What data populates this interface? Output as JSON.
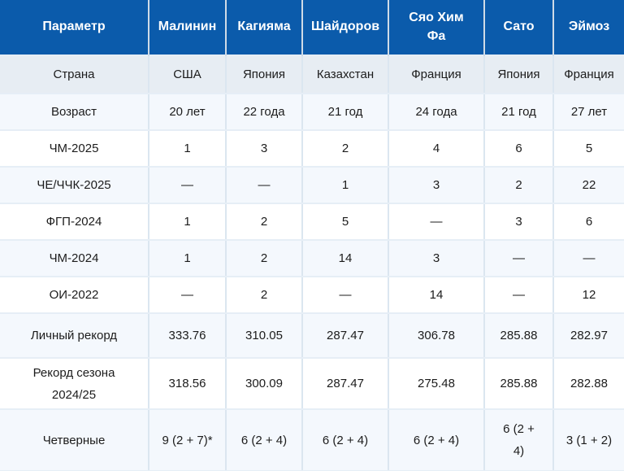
{
  "chart_data": {
    "type": "table",
    "header": {
      "param_label": "Параметр",
      "skaters": [
        "Малинин",
        "Кагияма",
        "Шайдоров",
        "Сяо Хим\nФа",
        "Сато",
        "Эймоз"
      ]
    },
    "rows": [
      {
        "label": "Страна",
        "values": [
          "США",
          "Япония",
          "Казахстан",
          "Франция",
          "Япония",
          "Франция"
        ]
      },
      {
        "label": "Возраст",
        "values": [
          "20 лет",
          "22 года",
          "21 год",
          "24 года",
          "21 год",
          "27 лет"
        ]
      },
      {
        "label": "ЧМ-2025",
        "values": [
          "1",
          "3",
          "2",
          "4",
          "6",
          "5"
        ]
      },
      {
        "label": "ЧЕ/ЧЧК-2025",
        "values": [
          "—",
          "—",
          "1",
          "3",
          "2",
          "22"
        ]
      },
      {
        "label": "ФГП-2024",
        "values": [
          "1",
          "2",
          "5",
          "—",
          "3",
          "6"
        ]
      },
      {
        "label": "ЧМ-2024",
        "values": [
          "1",
          "2",
          "14",
          "3",
          "—",
          "—"
        ]
      },
      {
        "label": "ОИ-2022",
        "values": [
          "—",
          "2",
          "—",
          "14",
          "—",
          "12"
        ]
      },
      {
        "label": "Личный рекорд",
        "values": [
          "333.76",
          "310.05",
          "287.47",
          "306.78",
          "285.88",
          "282.97"
        ]
      },
      {
        "label": "Рекорд сезона\n2024/25",
        "values": [
          "318.56",
          "300.09",
          "287.47",
          "275.48",
          "285.88",
          "282.88"
        ]
      },
      {
        "label": "Четверные",
        "values": [
          "9 (2 + 7)*",
          "6 (2 + 4)",
          "6 (2 + 4)",
          "6 (2 + 4)",
          "6 (2 +\n4)",
          "3 (1 + 2)"
        ]
      }
    ]
  },
  "colors": {
    "header_bg": "#0b5bab",
    "header_text": "#ffffff",
    "header_divider": "#cfdbe7",
    "country_row_bg": "#e7edf3",
    "stripe_row_bg": "#f4f8fd",
    "white_row_bg": "#ffffff",
    "body_text": "#1c1c1c",
    "grid_h": "#e6eef6",
    "grid_v": "#dbe6f0"
  }
}
